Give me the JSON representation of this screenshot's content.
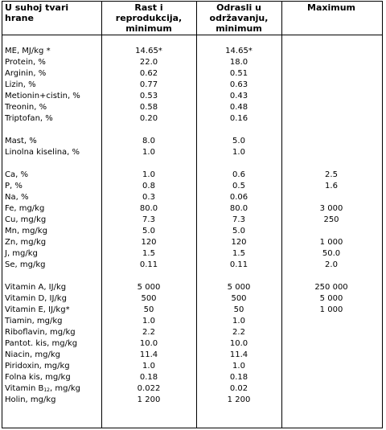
{
  "headers": {
    "col0": [
      "U suhoj tvari",
      "hrane"
    ],
    "col1": [
      "Rast i",
      "reprodukcija,",
      "minimum"
    ],
    "col2": [
      "Odrasli u",
      "održavanju,",
      "minimum"
    ],
    "col3": [
      "Maximum"
    ]
  },
  "rows": [
    {
      "label": "ME, MJ/kg *",
      "growth": "14.65*",
      "adult": "14.65*",
      "max": ""
    },
    {
      "label": "Protein, %",
      "growth": "22.0",
      "adult": "18.0",
      "max": ""
    },
    {
      "label": "Arginin, %",
      "growth": "0.62",
      "adult": "0.51",
      "max": ""
    },
    {
      "label": "Lizin, %",
      "growth": "0.77",
      "adult": "0.63",
      "max": ""
    },
    {
      "label": "Metionin+cistin, %",
      "growth": "0.53",
      "adult": "0.43",
      "max": ""
    },
    {
      "label": "Treonin, %",
      "growth": "0.58",
      "adult": "0.48",
      "max": ""
    },
    {
      "label": "Triptofan, %",
      "growth": "0.20",
      "adult": "0.16",
      "max": ""
    },
    {
      "label": "Mast, %",
      "growth": "8.0",
      "adult": "5.0",
      "max": ""
    },
    {
      "label": "Linolna kiselina, %",
      "growth": "1.0",
      "adult": "1.0",
      "max": ""
    },
    {
      "label": "Ca, %",
      "growth": "1.0",
      "adult": "0.6",
      "max": "2.5"
    },
    {
      "label": "P, %",
      "growth": "0.8",
      "adult": "0.5",
      "max": "1.6"
    },
    {
      "label": "Na, %",
      "growth": "0.3",
      "adult": "0.06",
      "max": ""
    },
    {
      "label": "Fe, mg/kg",
      "growth": "80.0",
      "adult": "80.0",
      "max": "3 000"
    },
    {
      "label": "Cu, mg/kg",
      "growth": "7.3",
      "adult": "7.3",
      "max": "250"
    },
    {
      "label": "Mn, mg/kg",
      "growth": "5.0",
      "adult": "5.0",
      "max": ""
    },
    {
      "label": "Zn, mg/kg",
      "growth": "120",
      "adult": "120",
      "max": "1 000"
    },
    {
      "label": "J, mg/kg",
      "growth": "1.5",
      "adult": "1.5",
      "max": "50.0"
    },
    {
      "label": "Se, mg/kg",
      "growth": "0.11",
      "adult": "0.11",
      "max": "2.0"
    },
    {
      "label": "Vitamin A, IJ/kg",
      "growth": "5 000",
      "adult": "5 000",
      "max": "250 000"
    },
    {
      "label": "Vitamin D, IJ/kg",
      "growth": "500",
      "adult": "500",
      "max": "5 000"
    },
    {
      "label": "Vitamin E, IJ/kg*",
      "growth": "50",
      "adult": "50",
      "max": "1 000"
    },
    {
      "label": "Tiamin, mg/kg",
      "growth": "1.0",
      "adult": "1.0",
      "max": ""
    },
    {
      "label": "Riboflavin, mg/kg",
      "growth": "2.2",
      "adult": "2.2",
      "max": ""
    },
    {
      "label": "Pantot. kis, mg/kg",
      "growth": "10.0",
      "adult": "10.0",
      "max": ""
    },
    {
      "label": "Niacin, mg/kg",
      "growth": "11.4",
      "adult": "11.4",
      "max": ""
    },
    {
      "label": "Piridoxin, mg/kg",
      "growth": "1.0",
      "adult": "1.0",
      "max": ""
    },
    {
      "label": "Folna kis, mg/kg",
      "growth": "0.18",
      "adult": "0.18",
      "max": ""
    },
    {
      "label": "Vitamin B",
      "label_sub": "12",
      "label_after": ", mg/kg",
      "growth": "0.022",
      "adult": "0.02",
      "max": ""
    },
    {
      "label": "Holin, mg/kg",
      "growth": "1 200",
      "adult": "1 200",
      "max": ""
    }
  ]
}
